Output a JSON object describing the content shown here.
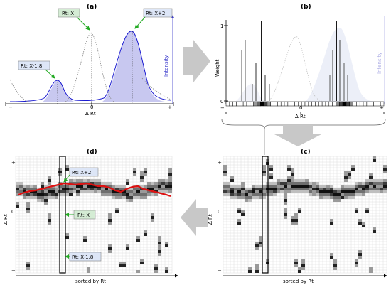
{
  "panels": {
    "a": {
      "letter": "(a)",
      "callouts": {
        "x": "Rt: X",
        "x_plus_2": "Rt: X+2",
        "x_minus_1_8": "Rt: X-1.8"
      },
      "x_minus": "−",
      "x_zero": "0",
      "x_plus": "+",
      "xlabel": "Δ Rt",
      "ylabel_right": "Intensity"
    },
    "b": {
      "letter": "(b)",
      "ylabel_left": "Weight",
      "ylabel_right": "Intensity",
      "y_one": "1",
      "y_zero": "0",
      "x_minus": "−",
      "x_zero": "0",
      "x_plus": "+",
      "xlabel": "Δ Rt"
    },
    "c": {
      "letter": "(c)",
      "ylabel": "Δ Rt",
      "y_plus": "+",
      "y_zero": "0",
      "y_minus": "−",
      "xlabel": "sorted by Rt"
    },
    "d": {
      "letter": "(d)",
      "ylabel": "Δ Rt",
      "y_plus": "+",
      "y_zero": "0",
      "y_minus": "−",
      "xlabel": "sorted by Rt",
      "callouts": {
        "x_plus_2": "Rt: X+2",
        "x": "Rt: X",
        "x_minus_1_8": "Rt: X-1.8"
      }
    }
  },
  "colors": {
    "peak_fill": "#c8c8f0",
    "peak_line": "#1a1ad0",
    "callout_bg": "#d4ecd4",
    "callout_bg_blue": "#dde6f7",
    "arrow_green": "#22aa22",
    "trace_red": "#dd1111",
    "big_arrow": "#c8c8c8"
  }
}
